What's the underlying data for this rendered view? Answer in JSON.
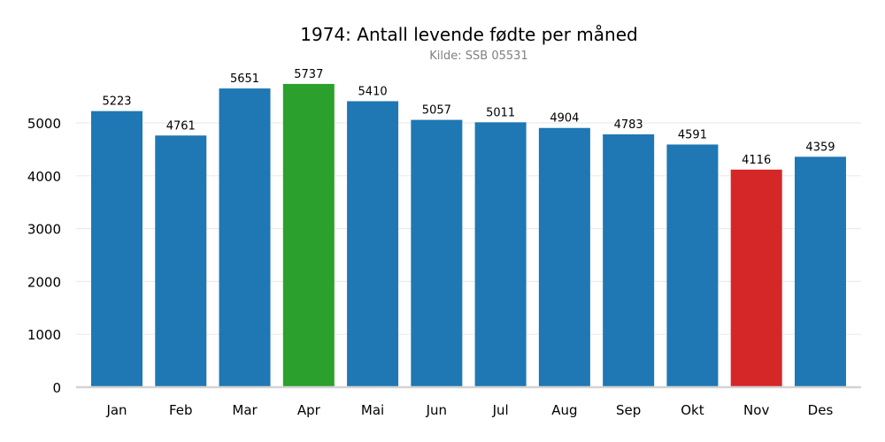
{
  "chart_data": {
    "type": "bar",
    "title": "1974: Antall levende fødte per måned",
    "subtitle": "Kilde: SSB 05531",
    "xlabel": "",
    "ylabel": "",
    "categories": [
      "Jan",
      "Feb",
      "Mar",
      "Apr",
      "Mai",
      "Jun",
      "Jul",
      "Aug",
      "Sep",
      "Okt",
      "Nov",
      "Des"
    ],
    "values": [
      5223,
      4761,
      5651,
      5737,
      5410,
      5057,
      5011,
      4904,
      4783,
      4591,
      4116,
      4359
    ],
    "data_labels": [
      "5223",
      "4761",
      "5651",
      "5737",
      "5410",
      "5057",
      "5011",
      "4904",
      "4783",
      "4591",
      "4116",
      "4359"
    ],
    "ylim": [
      0,
      5990
    ],
    "yticks": [
      0,
      1000,
      2000,
      3000,
      4000,
      5000
    ],
    "grid": "horizontal",
    "colors": {
      "default": "#1f77b4",
      "max": "#2ca02c",
      "min": "#d62728",
      "grid": "#ebebeb",
      "baseline": "#d3d3d3"
    },
    "highlight": {
      "max": "Apr",
      "min": "Nov"
    }
  }
}
